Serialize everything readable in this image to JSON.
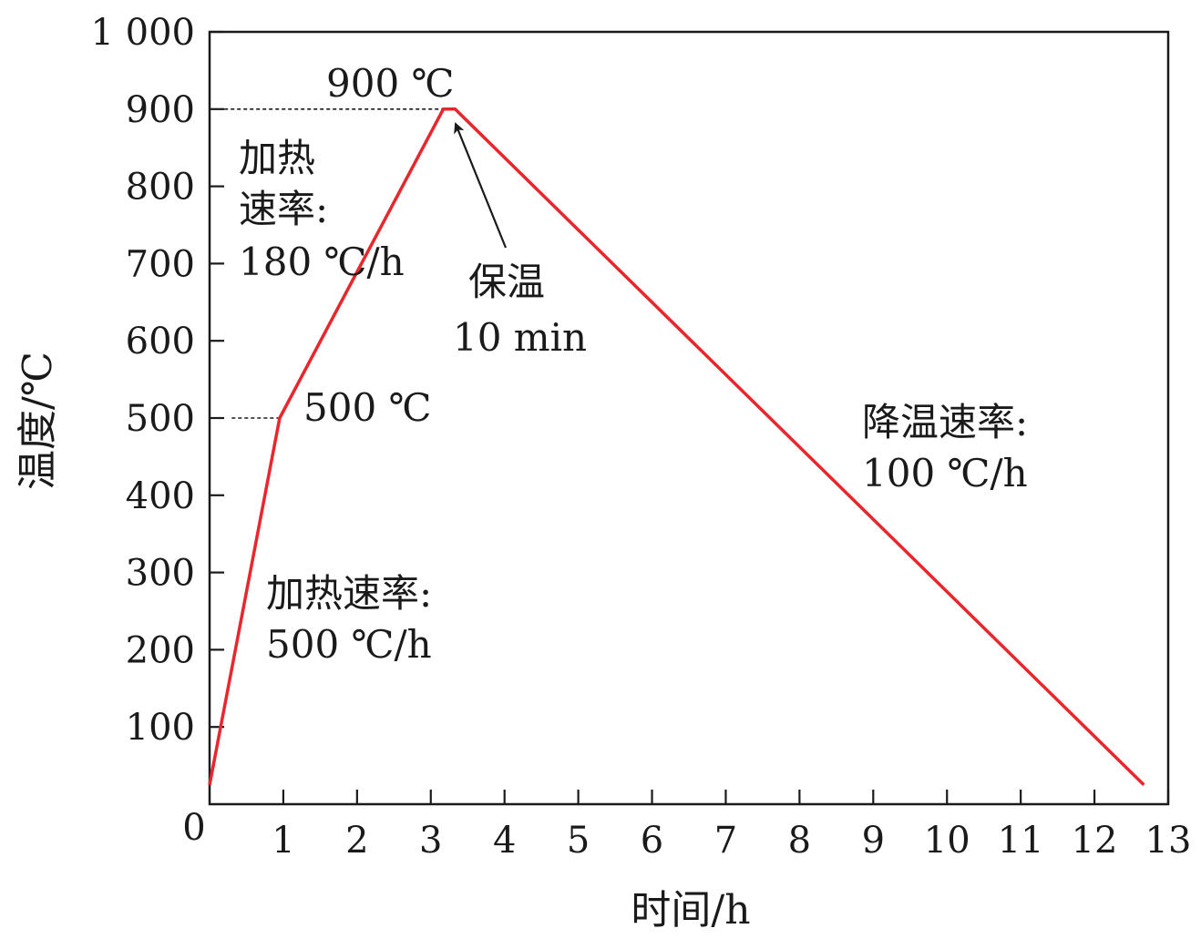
{
  "chart_data": {
    "type": "line",
    "xlabel": "时间/h",
    "ylabel": "温度/℃",
    "xlim": [
      0,
      13
    ],
    "ylim": [
      0,
      1000
    ],
    "x_ticks": [
      {
        "value": 0,
        "label": "0"
      },
      {
        "value": 1,
        "label": "1"
      },
      {
        "value": 2,
        "label": "2"
      },
      {
        "value": 3,
        "label": "3"
      },
      {
        "value": 4,
        "label": "4"
      },
      {
        "value": 5,
        "label": "5"
      },
      {
        "value": 6,
        "label": "6"
      },
      {
        "value": 7,
        "label": "7"
      },
      {
        "value": 8,
        "label": "8"
      },
      {
        "value": 9,
        "label": "9"
      },
      {
        "value": 10,
        "label": "10"
      },
      {
        "value": 11,
        "label": "11"
      },
      {
        "value": 12,
        "label": "12"
      },
      {
        "value": 13,
        "label": "13"
      }
    ],
    "y_ticks": [
      {
        "value": 100,
        "label": "100"
      },
      {
        "value": 200,
        "label": "200"
      },
      {
        "value": 300,
        "label": "300"
      },
      {
        "value": 400,
        "label": "400"
      },
      {
        "value": 500,
        "label": "500"
      },
      {
        "value": 600,
        "label": "600"
      },
      {
        "value": 700,
        "label": "700"
      },
      {
        "value": 800,
        "label": "800"
      },
      {
        "value": 900,
        "label": "900"
      },
      {
        "value": 1000,
        "label": "1 000"
      }
    ],
    "series": [
      {
        "color": "#e8262b",
        "x": [
          0,
          0.95,
          3.17,
          3.33,
          12.67
        ],
        "y": [
          25,
          500,
          900,
          900,
          25
        ]
      }
    ],
    "reference_lines": [
      {
        "y": 900,
        "x_from": 0.2,
        "x_to": 3.17
      },
      {
        "y": 500,
        "x_from": 0.3,
        "x_to": 0.95
      }
    ],
    "annotations": {
      "peak_temp": "900 ℃",
      "mid_temp": "500 ℃",
      "heating_rate_2_line1": "加热",
      "heating_rate_2_line2": "速率:",
      "heating_rate_2_value": "180 ℃/h",
      "hold_label": "保温",
      "hold_time": "10 min",
      "heating_rate_1_label": "加热速率:",
      "heating_rate_1_value": "500 ℃/h",
      "cooling_rate_label": "降温速率:",
      "cooling_rate_value": "100 ℃/h"
    },
    "grid": false,
    "legend": "none"
  }
}
